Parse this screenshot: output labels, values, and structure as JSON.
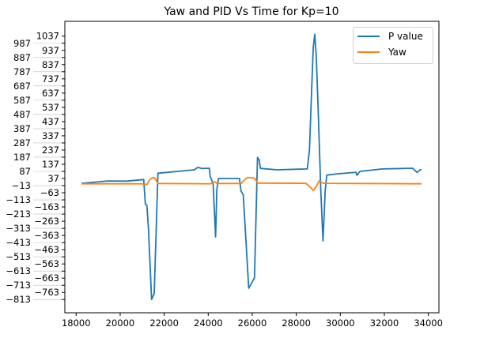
{
  "chart_data": {
    "type": "line",
    "title": "Yaw and PID Vs Time for Kp=10",
    "xlabel": "",
    "ylabel": "",
    "xlim": [
      17487,
      34479
    ],
    "ylim": [
      -906,
      1141
    ],
    "grid": false,
    "legend_position": "top-right",
    "x_ticks": [
      18000,
      20000,
      22000,
      24000,
      26000,
      28000,
      30000,
      32000,
      34000
    ],
    "x_tick_labels": [
      "18000",
      "20000",
      "22000",
      "24000",
      "26000",
      "28000",
      "30000",
      "32000",
      "34000"
    ],
    "y_ticks": [
      1037,
      987,
      937,
      887,
      837,
      787,
      737,
      687,
      637,
      587,
      537,
      487,
      437,
      387,
      337,
      287,
      237,
      187,
      137,
      87,
      37,
      -13,
      -63,
      -113,
      -163,
      -213,
      -263,
      -313,
      -363,
      -413,
      -463,
      -513,
      -563,
      -613,
      -663,
      -713,
      -763,
      -813
    ],
    "y_tick_labels": [
      "1037",
      "987",
      "937",
      "887",
      "837",
      "787",
      "737",
      "687",
      "637",
      "587",
      "537",
      "487",
      "437",
      "387",
      "337",
      "287",
      "237",
      "187",
      "137",
      "87",
      "37",
      "−13",
      "−63",
      "−113",
      "−163",
      "−213",
      "−263",
      "−313",
      "−363",
      "−413",
      "−463",
      "−513",
      "−563",
      "−613",
      "−663",
      "−713",
      "−763",
      "−813"
    ],
    "series": [
      {
        "name": "P value",
        "color": "#1f77b4",
        "x": [
          18239,
          19436,
          20291,
          21067,
          21145,
          21214,
          21282,
          21429,
          21545,
          21716,
          23368,
          23538,
          23709,
          24051,
          24085,
          24222,
          24335,
          24393,
          24462,
          25419,
          25487,
          25590,
          25839,
          26103,
          26239,
          26308,
          26376,
          27128,
          28496,
          28598,
          28701,
          28769,
          28838,
          28906,
          29009,
          29111,
          29214,
          29316,
          29385,
          29863,
          30718,
          30752,
          30889,
          31915,
          33282,
          33487,
          33624,
          33692
        ],
        "y": [
          3,
          20,
          19,
          30,
          -142,
          -151,
          -300,
          -813,
          -771,
          74,
          98,
          116,
          107,
          109,
          54,
          0,
          -373,
          -40,
          37,
          37,
          -50,
          -78,
          -734,
          -660,
          185,
          170,
          108,
          98,
          104,
          236,
          680,
          957,
          1050,
          900,
          457,
          -41,
          -401,
          -41,
          61,
          70,
          81,
          59,
          87,
          104,
          109,
          80,
          98,
          98
        ]
      },
      {
        "name": "Yaw",
        "color": "#ff7f0e",
        "x": [
          18239,
          21000,
          21214,
          21350,
          21480,
          21580,
          21716,
          24100,
          24300,
          24400,
          25500,
          25700,
          25800,
          26100,
          26250,
          28430,
          28650,
          28770,
          28900,
          29050,
          29150,
          29250,
          33692
        ],
        "y": [
          0,
          0,
          -5,
          30,
          45,
          40,
          2,
          0,
          15,
          2,
          2,
          35,
          45,
          40,
          5,
          3,
          -25,
          -48,
          -20,
          22,
          10,
          3,
          0
        ]
      }
    ]
  }
}
